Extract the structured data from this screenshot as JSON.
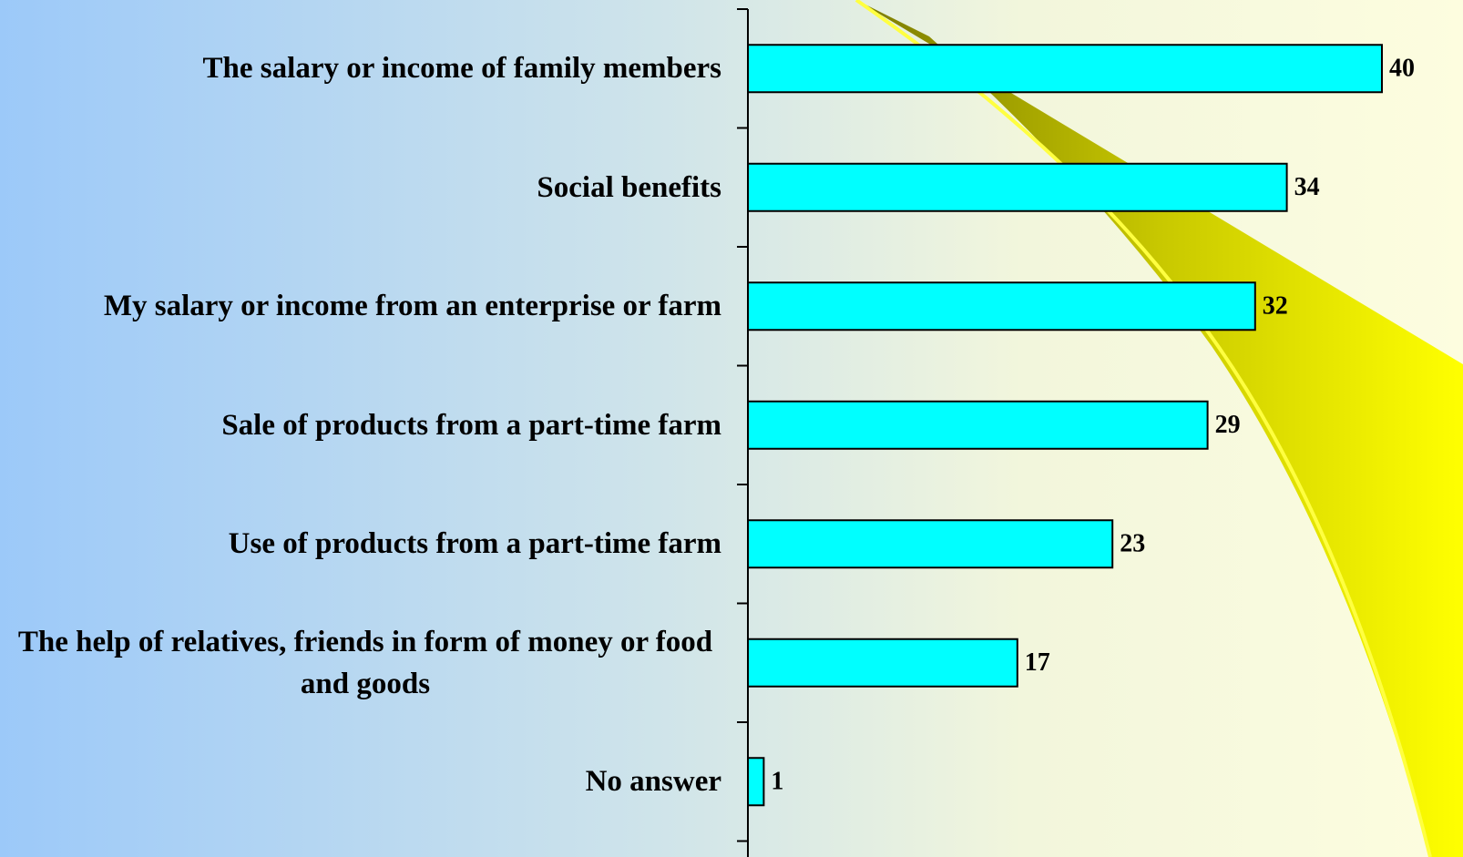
{
  "chart_data": {
    "type": "bar",
    "orientation": "horizontal",
    "categories": [
      "The salary or income of family members",
      "Social benefits",
      "My salary or income from an enterprise or farm",
      "Sale of products from a part-time farm",
      "Use of products from a part-time farm",
      "The help of relatives, friends in form of money or food and goods",
      "No answer"
    ],
    "values": [
      40,
      34,
      32,
      29,
      23,
      17,
      1
    ],
    "color": "#00ffff"
  }
}
